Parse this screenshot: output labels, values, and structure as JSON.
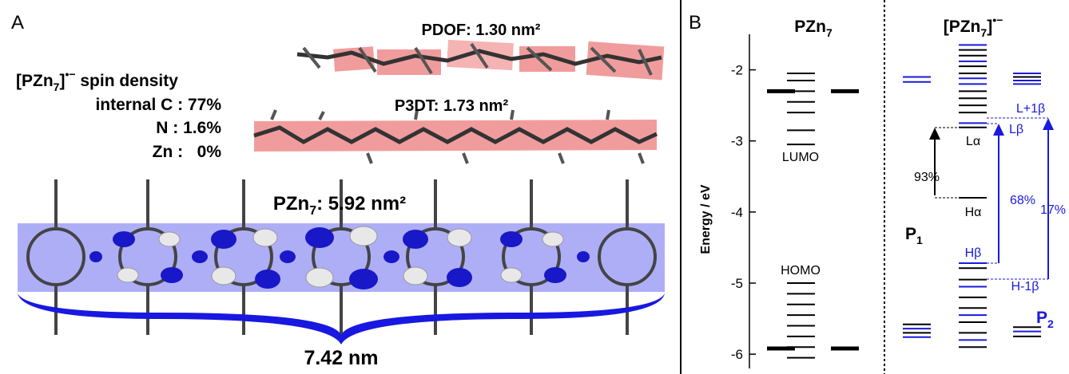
{
  "panel_a": {
    "label": "A",
    "spin_title": {
      "pre": "[PZn",
      "sub": "7",
      "post": "]",
      "sup": "•−",
      "tail": " spin density"
    },
    "spin_rows": [
      "internal C : 77%",
      "N : 1.6%",
      "Zn :   0%"
    ],
    "pdof": "PDOF: 1.30 nm²",
    "p3dt": "P3DT: 1.73 nm²",
    "pzn": {
      "pre": "PZn",
      "sub": "7",
      "post": ": 5.92 nm²"
    },
    "length": "7.42 nm"
  },
  "panel_b": {
    "label": "B",
    "y_axis_label": "Energy / eV",
    "ylim": [
      -6.2,
      -1.5
    ],
    "yticks": [
      -2,
      -3,
      -4,
      -5,
      -6
    ],
    "columns": [
      {
        "title": {
          "pre": "PZn",
          "sub": "7",
          "post": ""
        },
        "stacks": [
          {
            "thick": true,
            "energies": [
              -2.3,
              -5.92
            ],
            "colors": [
              "#000000",
              "#000000"
            ]
          },
          {
            "thick": false,
            "energies": [
              -2.05,
              -2.15,
              -2.3,
              -2.45,
              -2.6,
              -2.85,
              -3.05,
              -5.0,
              -5.15,
              -5.3,
              -5.45,
              -5.6,
              -5.75,
              -5.9,
              -6.05
            ],
            "colors": [
              "#000000",
              "#000000",
              "#000000",
              "#000000",
              "#000000",
              "#000000",
              "#000000",
              "#000000",
              "#000000",
              "#000000",
              "#000000",
              "#000000",
              "#000000",
              "#000000",
              "#000000"
            ]
          },
          {
            "thick": true,
            "energies": [
              -2.3,
              -5.92
            ],
            "colors": [
              "#000000",
              "#000000"
            ]
          }
        ]
      },
      {
        "title": {
          "pre": "[PZn",
          "sub": "7",
          "post": "]",
          "sup": "•−"
        },
        "stacks": [
          {
            "thick": false,
            "energies": [
              -2.1,
              -2.17,
              -5.58,
              -5.64,
              -5.7,
              -5.76
            ],
            "colors": [
              "#1a1adc",
              "#1a1adc",
              "#000000",
              "#1a1adc",
              "#000000",
              "#1a1adc"
            ]
          },
          {
            "thick": false,
            "energies": [
              -1.65,
              -1.72,
              -1.8,
              -1.88,
              -1.95,
              -2.05,
              -2.12,
              -2.2,
              -2.3,
              -2.4,
              -2.5,
              -2.6,
              -2.75,
              -2.81,
              -3.8,
              -4.72,
              -4.79,
              -4.95,
              -5.05,
              -5.2,
              -5.35,
              -5.45,
              -5.55,
              -5.7,
              -5.8,
              -5.9
            ],
            "colors": [
              "#1a1adc",
              "#000000",
              "#000000",
              "#1a1adc",
              "#000000",
              "#000000",
              "#1a1adc",
              "#1a1adc",
              "#000000",
              "#000000",
              "#000000",
              "#000000",
              "#1a1adc",
              "#000000",
              "#000000",
              "#1a1adc",
              "#000000",
              "#000000",
              "#1a1adc",
              "#000000",
              "#000000",
              "#1a1adc",
              "#000000",
              "#000000",
              "#1a1adc",
              "#000000"
            ]
          },
          {
            "thick": false,
            "energies": [
              -2.05,
              -2.1,
              -2.15,
              -2.2,
              -5.62,
              -5.68,
              -5.75
            ],
            "colors": [
              "#1a1adc",
              "#000000",
              "#1a1adc",
              "#1a1adc",
              "#000000",
              "#1a1adc",
              "#000000"
            ]
          }
        ]
      }
    ],
    "annotations": {
      "lumo": "LUMO",
      "homo": "HOMO",
      "l_alpha": "Lα",
      "h_alpha": "Hα",
      "l_beta": "Lβ",
      "h_beta": "Hβ",
      "l1_beta": "L+1β",
      "h1_beta": "H-1β",
      "p93": "93%",
      "p68": "68%",
      "p17": "17%",
      "p1": {
        "pre": "P",
        "sub": "1"
      },
      "p2": {
        "pre": "P",
        "sub": "2"
      }
    }
  }
}
